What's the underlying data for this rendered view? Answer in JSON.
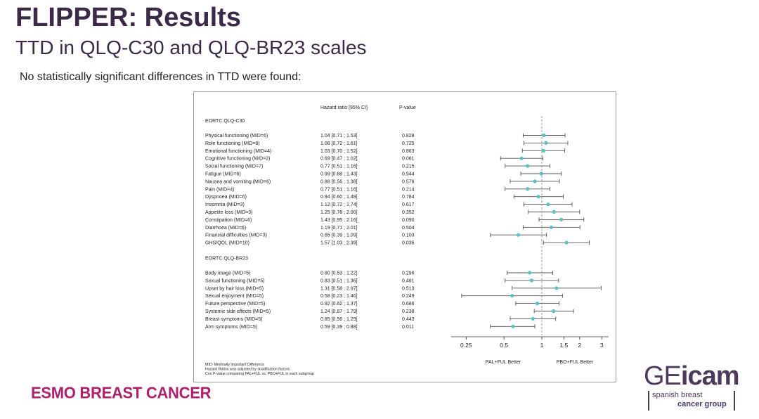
{
  "slide": {
    "title": "FLIPPER: Results",
    "subtitle": "TTD in QLQ-C30 and QLQ-BR23 scales",
    "intro": "No statistically significant differences in TTD were found:"
  },
  "chart_data": {
    "type": "forest",
    "column_headers": {
      "hr": "Hazard ratio [95% CI]",
      "p": "P-value"
    },
    "x_scale": "log",
    "xlim": [
      0.2,
      3.4
    ],
    "reference_line": 1,
    "ticks": [
      {
        "value": 0.25,
        "label": "0.25"
      },
      {
        "value": 0.5,
        "label": "0.5"
      },
      {
        "value": 1,
        "label": "1"
      },
      {
        "value": 1.5,
        "label": "1.5"
      },
      {
        "value": 2,
        "label": "2"
      },
      {
        "value": 3,
        "label": "3"
      }
    ],
    "left_caption": "PAL+FUL Better",
    "right_caption": "PBO+FUL Better",
    "groups": [
      {
        "name": "EORTC QLQ-C30",
        "rows": [
          {
            "label": "Physical functioning (MID=6)",
            "hr_text": "1.04 [0.71 ; 1.53]",
            "p": "0.828",
            "hr": 1.04,
            "lo": 0.71,
            "hi": 1.53
          },
          {
            "label": "Role functioning (MID=8)",
            "hr_text": "1.08 [0.72 ; 1.61]",
            "p": "0.725",
            "hr": 1.08,
            "lo": 0.72,
            "hi": 1.61
          },
          {
            "label": "Emotional functioning (MID=4)",
            "hr_text": "1.03 [0.70 ; 1.52]",
            "p": "0.863",
            "hr": 1.03,
            "lo": 0.7,
            "hi": 1.52
          },
          {
            "label": "Cognitive functioning (MID=2)",
            "hr_text": "0.69 [0.47 ; 1.02]",
            "p": "0.061",
            "hr": 0.69,
            "lo": 0.47,
            "hi": 1.02
          },
          {
            "label": "Social functioning (MID=7)",
            "hr_text": "0.77 [0.51 ; 1.16]",
            "p": "0.215",
            "hr": 0.77,
            "lo": 0.51,
            "hi": 1.16
          },
          {
            "label": "Fatigue (MID=6)",
            "hr_text": "0.99 [0.68 ; 1.43]",
            "p": "0.944",
            "hr": 0.99,
            "lo": 0.68,
            "hi": 1.43
          },
          {
            "label": "Nausea and vomiting (MID=6)",
            "hr_text": "0.88 [0.56 ; 1.38]",
            "p": "0.576",
            "hr": 0.88,
            "lo": 0.56,
            "hi": 1.38
          },
          {
            "label": "Pain (MID=4)",
            "hr_text": "0.77 [0.51 ; 1.16]",
            "p": "0.214",
            "hr": 0.77,
            "lo": 0.51,
            "hi": 1.16
          },
          {
            "label": "Dyspnoea (MID=6)",
            "hr_text": "0.94 [0.60 ; 1.48]",
            "p": "0.784",
            "hr": 0.94,
            "lo": 0.6,
            "hi": 1.48
          },
          {
            "label": "Insomnia (MID=3)",
            "hr_text": "1.12 [0.72 ; 1.74]",
            "p": "0.617",
            "hr": 1.12,
            "lo": 0.72,
            "hi": 1.74
          },
          {
            "label": "Appetite loss (MID=3)",
            "hr_text": "1.25 [0.78 ; 2.00]",
            "p": "0.352",
            "hr": 1.25,
            "lo": 0.78,
            "hi": 2.0
          },
          {
            "label": "Constipation (MID=6)",
            "hr_text": "1.43 [0.95 ; 2.16]",
            "p": "0.090",
            "hr": 1.43,
            "lo": 0.95,
            "hi": 2.16
          },
          {
            "label": "Diarrhoea (MID=6)",
            "hr_text": "1.19 [0.71 ; 2.01]",
            "p": "0.504",
            "hr": 1.19,
            "lo": 0.71,
            "hi": 2.01
          },
          {
            "label": "Financial difficulties (MID=3)",
            "hr_text": "0.65 [0.39 ; 1.09]",
            "p": "0.103",
            "hr": 0.65,
            "lo": 0.39,
            "hi": 1.09
          },
          {
            "label": "GHS/QOL (MID=10)",
            "hr_text": "1.57 [1.03 ; 2.39]",
            "p": "0.036",
            "hr": 1.57,
            "lo": 1.03,
            "hi": 2.39
          }
        ]
      },
      {
        "name": "EORTC QLQ-BR23",
        "rows": [
          {
            "label": "Body image (MID=5)",
            "hr_text": "0.80 [0.53 ; 1.22]",
            "p": "0.296",
            "hr": 0.8,
            "lo": 0.53,
            "hi": 1.22
          },
          {
            "label": "Sexual functioning (MID=5)",
            "hr_text": "0.83 [0.51 ; 1.36]",
            "p": "0.461",
            "hr": 0.83,
            "lo": 0.51,
            "hi": 1.36
          },
          {
            "label": "Upset by hair loss (MID=5)",
            "hr_text": "1.31 [0.58 ; 2.97]",
            "p": "0.513",
            "hr": 1.31,
            "lo": 0.58,
            "hi": 2.97
          },
          {
            "label": "Sexual enjoyment (MID=5)",
            "hr_text": "0.58 [0.23 ; 1.46]",
            "p": "0.249",
            "hr": 0.58,
            "lo": 0.23,
            "hi": 1.46
          },
          {
            "label": "Future perspective (MID=5)",
            "hr_text": "0.92 [0.62 ; 1.37]",
            "p": "0.686",
            "hr": 0.92,
            "lo": 0.62,
            "hi": 1.37
          },
          {
            "label": "Systemic side effects (MID=5)",
            "hr_text": "1.24 [0.87 ; 1.79]",
            "p": "0.238",
            "hr": 1.24,
            "lo": 0.87,
            "hi": 1.79
          },
          {
            "label": "Breast symptoms (MID=5)",
            "hr_text": "0.85 [0.56 ; 1.29]",
            "p": "0.443",
            "hr": 0.85,
            "lo": 0.56,
            "hi": 1.29
          },
          {
            "label": "Arm symptoms (MID=5)",
            "hr_text": "0.59 [0.39 ; 0.88]",
            "p": "0.011",
            "hr": 0.59,
            "lo": 0.39,
            "hi": 0.88
          }
        ]
      }
    ],
    "footnotes": [
      "MID: Minimally Important Difference",
      "Hazard Ratios was adjusted by stratification factors",
      "Cox P-value comparing PAL+FUL vs. PBO+FUL in each subgroup"
    ],
    "colors": {
      "point": "#5bc2c2",
      "whisker": "#555555",
      "reference": "#888888"
    }
  },
  "footer": {
    "esmo_logo": "ESMO BREAST CANCER",
    "geicam_logo": {
      "ge": "GE",
      "icam": "icam",
      "line1": "spanish breast",
      "line2": "cancer group"
    }
  }
}
